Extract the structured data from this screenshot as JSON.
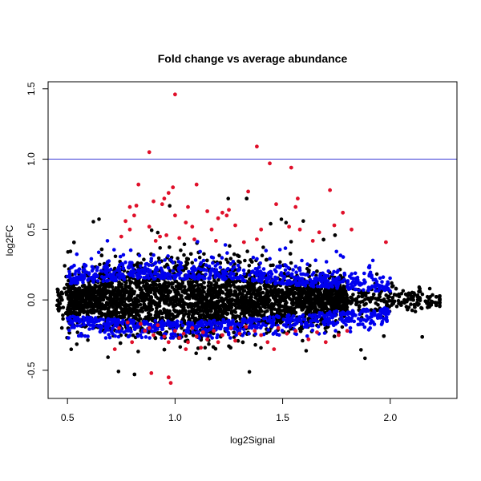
{
  "chart_data": {
    "type": "scatter",
    "title": "Fold change vs average abundance",
    "xlabel": "log2Signal",
    "ylabel": "log2FC",
    "xlim": [
      0.41,
      2.31
    ],
    "ylim": [
      -0.7,
      1.55
    ],
    "x_ticks": [
      0.5,
      1.0,
      1.5,
      2.0
    ],
    "x_tick_labels": [
      "0.5",
      "1.0",
      "1.5",
      "2.0"
    ],
    "y_ticks": [
      -0.5,
      0.0,
      0.5,
      1.0,
      1.5
    ],
    "y_tick_labels": [
      "-0.5",
      "0.0",
      "0.5",
      "1.0",
      "1.5"
    ],
    "grid": false,
    "legend": "none",
    "reference_line": {
      "orientation": "horizontal",
      "y": 1.0,
      "color": "#3b3bd6"
    },
    "colors": {
      "all": "#000000",
      "highlighted": "#0000ee",
      "significant": "#e0102a"
    },
    "series": [
      {
        "color_key": "significant",
        "points": [
          [
            1.0,
            1.46
          ],
          [
            0.88,
            1.05
          ],
          [
            1.38,
            1.09
          ],
          [
            1.44,
            0.97
          ],
          [
            1.54,
            0.94
          ],
          [
            0.83,
            0.82
          ],
          [
            1.1,
            0.82
          ],
          [
            1.34,
            0.77
          ],
          [
            1.72,
            0.78
          ],
          [
            0.99,
            0.8
          ],
          [
            0.97,
            0.76
          ],
          [
            0.9,
            0.7
          ],
          [
            0.94,
            0.68
          ],
          [
            0.95,
            0.72
          ],
          [
            1.57,
            0.72
          ],
          [
            0.79,
            0.66
          ],
          [
            0.82,
            0.67
          ],
          [
            1.06,
            0.66
          ],
          [
            1.15,
            0.63
          ],
          [
            1.22,
            0.62
          ],
          [
            1.25,
            0.64
          ],
          [
            1.47,
            0.68
          ],
          [
            1.56,
            0.66
          ],
          [
            1.78,
            0.62
          ],
          [
            0.81,
            0.6
          ],
          [
            1.0,
            0.6
          ],
          [
            1.2,
            0.58
          ],
          [
            1.24,
            0.6
          ],
          [
            0.77,
            0.56
          ],
          [
            1.05,
            0.55
          ],
          [
            0.88,
            0.52
          ],
          [
            1.08,
            0.52
          ],
          [
            1.28,
            0.53
          ],
          [
            1.53,
            0.52
          ],
          [
            1.74,
            0.53
          ],
          [
            0.79,
            0.5
          ],
          [
            1.17,
            0.5
          ],
          [
            1.4,
            0.5
          ],
          [
            1.58,
            0.5
          ],
          [
            1.82,
            0.5
          ],
          [
            1.67,
            0.48
          ],
          [
            0.75,
            0.45
          ],
          [
            0.93,
            0.45
          ],
          [
            0.96,
            0.46
          ],
          [
            1.02,
            0.44
          ],
          [
            1.09,
            0.43
          ],
          [
            1.19,
            0.42
          ],
          [
            1.38,
            0.43
          ],
          [
            1.64,
            0.42
          ],
          [
            1.98,
            0.41
          ],
          [
            0.91,
            0.42
          ],
          [
            1.32,
            0.41
          ],
          [
            0.78,
            -0.16
          ],
          [
            0.84,
            -0.17
          ],
          [
            0.86,
            -0.22
          ],
          [
            0.88,
            -0.2
          ],
          [
            0.9,
            -0.25
          ],
          [
            0.92,
            -0.18
          ],
          [
            0.95,
            -0.26
          ],
          [
            0.97,
            -0.3
          ],
          [
            1.0,
            -0.22
          ],
          [
            1.02,
            -0.27
          ],
          [
            1.04,
            -0.24
          ],
          [
            1.06,
            -0.3
          ],
          [
            1.08,
            -0.2
          ],
          [
            1.1,
            -0.26
          ],
          [
            1.13,
            -0.23
          ],
          [
            1.15,
            -0.28
          ],
          [
            1.18,
            -0.22
          ],
          [
            1.22,
            -0.25
          ],
          [
            1.26,
            -0.2
          ],
          [
            1.3,
            -0.24
          ],
          [
            1.33,
            -0.19
          ],
          [
            1.37,
            -0.22
          ],
          [
            1.4,
            -0.25
          ],
          [
            1.43,
            -0.3
          ],
          [
            1.46,
            -0.35
          ],
          [
            1.48,
            -0.2
          ],
          [
            1.52,
            -0.24
          ],
          [
            1.56,
            -0.22
          ],
          [
            1.62,
            -0.28
          ],
          [
            1.66,
            -0.23
          ],
          [
            1.7,
            -0.3
          ],
          [
            1.76,
            -0.25
          ],
          [
            1.8,
            -0.22
          ],
          [
            0.74,
            -0.2
          ],
          [
            0.8,
            -0.3
          ],
          [
            0.89,
            -0.52
          ],
          [
            0.97,
            -0.55
          ],
          [
            0.98,
            -0.59
          ],
          [
            1.05,
            -0.35
          ],
          [
            0.72,
            -0.35
          ],
          [
            1.2,
            -0.3
          ],
          [
            1.28,
            -0.29
          ],
          [
            1.12,
            -0.34
          ]
        ]
      }
    ]
  }
}
